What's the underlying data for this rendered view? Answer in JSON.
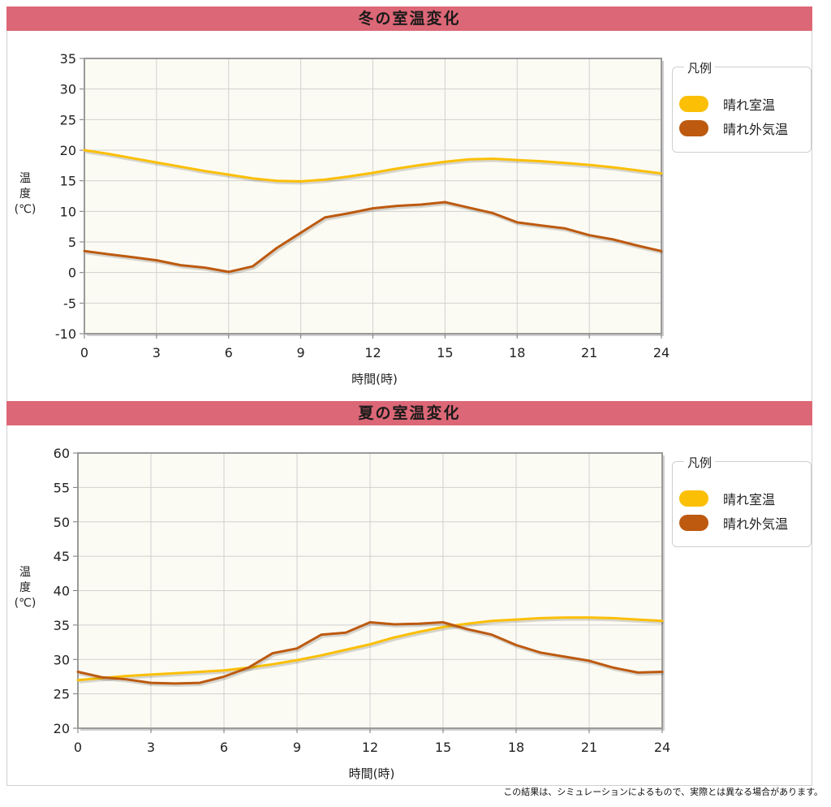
{
  "footnote": "この結果は、シミュレーションによるもので、実際とは異なる場合があります。",
  "legend": {
    "title": "凡例",
    "items": [
      {
        "label": "晴れ室温",
        "color": "#fbbf05"
      },
      {
        "label": "晴れ外気温",
        "color": "#bd5a10"
      }
    ]
  },
  "colors": {
    "header": "#dc6776",
    "plot_bg": "#fcfbf3",
    "grid": "#d0d0d0",
    "indoor": "#fbbf05",
    "outdoor": "#bd5a10"
  },
  "chart_data": [
    {
      "type": "line",
      "title": "冬の室温変化",
      "xlabel": "時間(時)",
      "ylabel_lines": [
        "温",
        "度",
        "(℃)"
      ],
      "x": [
        0,
        1,
        2,
        3,
        4,
        5,
        6,
        7,
        8,
        9,
        10,
        11,
        12,
        13,
        14,
        15,
        16,
        17,
        18,
        19,
        20,
        21,
        22,
        23,
        24
      ],
      "xticks": [
        0,
        3,
        6,
        9,
        12,
        15,
        18,
        21,
        24
      ],
      "ylim": [
        -10,
        35
      ],
      "yticks": [
        -10,
        -5,
        0,
        5,
        10,
        15,
        20,
        25,
        30,
        35
      ],
      "grid": true,
      "legend_position": "right",
      "series": [
        {
          "name": "晴れ室温",
          "values": [
            20.0,
            19.4,
            18.7,
            18.0,
            17.3,
            16.6,
            16.0,
            15.4,
            15.0,
            14.9,
            15.2,
            15.7,
            16.3,
            17.0,
            17.6,
            18.1,
            18.5,
            18.6,
            18.4,
            18.2,
            17.9,
            17.6,
            17.2,
            16.7,
            16.2
          ]
        },
        {
          "name": "晴れ外気温",
          "values": [
            3.5,
            3.0,
            2.5,
            2.0,
            1.2,
            0.8,
            0.1,
            1.0,
            4.0,
            6.5,
            9.0,
            9.7,
            10.5,
            10.9,
            11.1,
            11.5,
            10.6,
            9.7,
            8.2,
            7.7,
            7.2,
            6.1,
            5.4,
            4.4,
            3.5
          ]
        }
      ]
    },
    {
      "type": "line",
      "title": "夏の室温変化",
      "xlabel": "時間(時)",
      "ylabel_lines": [
        "温",
        "度",
        "(℃)"
      ],
      "x": [
        0,
        1,
        2,
        3,
        4,
        5,
        6,
        7,
        8,
        9,
        10,
        11,
        12,
        13,
        14,
        15,
        16,
        17,
        18,
        19,
        20,
        21,
        22,
        23,
        24
      ],
      "xticks": [
        0,
        3,
        6,
        9,
        12,
        15,
        18,
        21,
        24
      ],
      "ylim": [
        20,
        60
      ],
      "yticks": [
        20,
        25,
        30,
        35,
        40,
        45,
        50,
        55,
        60
      ],
      "grid": true,
      "legend_position": "right",
      "series": [
        {
          "name": "晴れ室温",
          "values": [
            27.0,
            27.3,
            27.6,
            27.8,
            28.0,
            28.2,
            28.4,
            28.8,
            29.3,
            29.9,
            30.6,
            31.4,
            32.2,
            33.2,
            34.0,
            34.7,
            35.2,
            35.6,
            35.8,
            36.0,
            36.1,
            36.1,
            36.0,
            35.8,
            35.6
          ]
        },
        {
          "name": "晴れ外気温",
          "values": [
            28.2,
            27.4,
            27.1,
            26.6,
            26.5,
            26.6,
            27.5,
            28.8,
            30.9,
            31.6,
            33.6,
            33.9,
            35.4,
            35.1,
            35.2,
            35.4,
            34.4,
            33.6,
            32.1,
            31.0,
            30.4,
            29.8,
            28.8,
            28.1,
            28.2
          ]
        }
      ]
    }
  ]
}
